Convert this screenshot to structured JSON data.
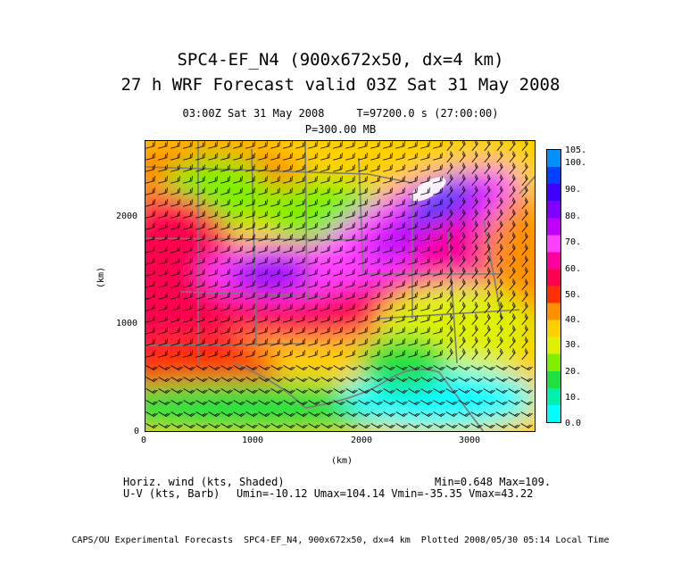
{
  "title_line1": "SPC4-EF_N4 (900x672x50, dx=4 km)",
  "title_line2": "27 h WRF Forecast valid 03Z Sat 31 May 2008",
  "subtitle_time": "03:00Z Sat 31 May 2008     T=97200.0 s (27:00:00)",
  "subtitle_level": "P=300.00 MB",
  "x_axis": {
    "label": "(km)",
    "ticks": [
      "0",
      "1000",
      "2000",
      "3000"
    ]
  },
  "y_axis": {
    "label": "(km)",
    "ticks": [
      "0",
      "1000",
      "2000"
    ]
  },
  "colorbar": {
    "labels": [
      "105.",
      "100.",
      "90.",
      "80.",
      "70.",
      "60.",
      "50.",
      "40.",
      "30.",
      "20.",
      "10.",
      "0.0"
    ],
    "colors": [
      "#00ffff",
      "#00f0b0",
      "#20e040",
      "#80f000",
      "#e0f000",
      "#ffd000",
      "#ff9000",
      "#ff3000",
      "#ff0050",
      "#ff00a0",
      "#ff40ff",
      "#c000ff",
      "#8000ff",
      "#4000ff",
      "#0040ff",
      "#0090ff"
    ]
  },
  "info": {
    "field1": "Horiz. wind (kts, Shaded)",
    "minmax": "Min=0.648 Max=109.",
    "field2": "U-V (kts, Barb)",
    "uvstats": "Umin=-10.12 Umax=104.14 Vmin=-35.35 Vmax=43.22"
  },
  "footer": "CAPS/OU Experimental Forecasts  SPC4-EF_N4, 900x672x50, dx=4 km  Plotted 2008/05/30 05:14 Local Time"
}
